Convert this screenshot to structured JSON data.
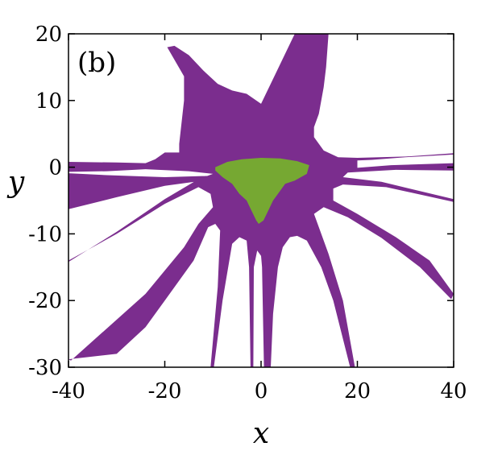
{
  "chart_data": {
    "type": "area",
    "title": "",
    "panel_label": "(b)",
    "xlabel": "x",
    "ylabel": "y",
    "xlim": [
      -40,
      40
    ],
    "ylim": [
      -30,
      20
    ],
    "x_ticks": [
      -40,
      -20,
      0,
      20,
      40
    ],
    "x_tick_labels": [
      "-40",
      "-20",
      "0",
      "20",
      "40"
    ],
    "y_ticks": [
      20,
      10,
      0,
      -10,
      -20,
      -30
    ],
    "y_tick_labels": [
      "20",
      "10",
      "0",
      "-10",
      "-20",
      "-30"
    ],
    "grid": false,
    "legend": "none",
    "colors": {
      "outer_region": "#7b2d8e",
      "inner_region": "#76a832",
      "axes": "#000000",
      "background": "#ffffff"
    },
    "regions": [
      {
        "fill": "outer_region",
        "polygon": [
          [
            -40,
            0.8
          ],
          [
            -30,
            0.7
          ],
          [
            -24,
            0.6
          ],
          [
            -22,
            1.2
          ],
          [
            -20,
            2.2
          ],
          [
            -17,
            2.2
          ],
          [
            -17,
            3.5
          ],
          [
            -16,
            10
          ],
          [
            -16,
            14
          ],
          [
            -15.5,
            13
          ],
          [
            -19.5,
            18
          ],
          [
            -18,
            18.2
          ],
          [
            -15,
            16.8
          ],
          [
            -12,
            14.5
          ],
          [
            -9,
            12.5
          ],
          [
            -6,
            11.5
          ],
          [
            -3,
            11
          ],
          [
            0,
            9.5
          ],
          [
            3,
            14
          ],
          [
            7,
            20
          ],
          [
            14,
            20
          ],
          [
            13.5,
            15
          ],
          [
            13,
            12
          ],
          [
            12,
            8
          ],
          [
            11,
            6
          ],
          [
            11,
            4.5
          ],
          [
            13,
            2.5
          ],
          [
            16,
            1.5
          ],
          [
            20,
            1.4
          ],
          [
            30,
            1.6
          ],
          [
            40,
            2.1
          ],
          [
            40,
            1.9
          ],
          [
            30,
            1.5
          ],
          [
            23,
            1.1
          ],
          [
            20,
            1.0
          ],
          [
            20,
            -0.1
          ],
          [
            27,
            0.3
          ],
          [
            40,
            0.6
          ],
          [
            40,
            -0.5
          ],
          [
            28,
            -0.4
          ],
          [
            18,
            -0.8
          ],
          [
            17,
            -1.5
          ],
          [
            25,
            -2.2
          ],
          [
            40,
            -4.8
          ],
          [
            40,
            -5.2
          ],
          [
            26,
            -3.0
          ],
          [
            17,
            -2.6
          ],
          [
            15,
            -3.2
          ],
          [
            15,
            -5
          ],
          [
            20,
            -7
          ],
          [
            28,
            -10.5
          ],
          [
            35,
            -14
          ],
          [
            40,
            -19
          ],
          [
            39.5,
            -19.8
          ],
          [
            33,
            -15
          ],
          [
            25,
            -10.6
          ],
          [
            18,
            -7.5
          ],
          [
            13,
            -6
          ],
          [
            11,
            -7
          ],
          [
            12,
            -9
          ],
          [
            14,
            -13
          ],
          [
            17,
            -20
          ],
          [
            19.5,
            -30
          ],
          [
            18.5,
            -30
          ],
          [
            15,
            -20
          ],
          [
            12.5,
            -15
          ],
          [
            9.5,
            -11
          ],
          [
            7.5,
            -10.3
          ],
          [
            6,
            -10.5
          ],
          [
            4.5,
            -12
          ],
          [
            3.5,
            -15
          ],
          [
            2.5,
            -22
          ],
          [
            2,
            -30
          ],
          [
            0.6,
            -30
          ],
          [
            0.2,
            -15
          ],
          [
            0,
            -13.3
          ],
          [
            -0.8,
            -12.5
          ],
          [
            -1.5,
            -15
          ],
          [
            -1.6,
            -30
          ],
          [
            -2.2,
            -30
          ],
          [
            -2.5,
            -15
          ],
          [
            -3,
            -11
          ],
          [
            -4.5,
            -10.5
          ],
          [
            -6,
            -11.5
          ],
          [
            -8,
            -20
          ],
          [
            -9.8,
            -30
          ],
          [
            -10.5,
            -30
          ],
          [
            -9,
            -18
          ],
          [
            -8.5,
            -9.5
          ],
          [
            -9.5,
            -8.5
          ],
          [
            -11,
            -9
          ],
          [
            -14,
            -14
          ],
          [
            -20,
            -20
          ],
          [
            -24,
            -24
          ],
          [
            -30,
            -28
          ],
          [
            -40,
            -28.8
          ],
          [
            -39.5,
            -29
          ],
          [
            -24,
            -19
          ],
          [
            -16,
            -12
          ],
          [
            -13,
            -8.5
          ],
          [
            -10,
            -6
          ],
          [
            -10.5,
            -4
          ],
          [
            -13,
            -3
          ],
          [
            -20,
            -5.5
          ],
          [
            -30,
            -10
          ],
          [
            -40,
            -14
          ],
          [
            -40,
            -14.2
          ],
          [
            -30,
            -9.7
          ],
          [
            -20,
            -4.8
          ],
          [
            -13,
            -1.8
          ],
          [
            -10,
            -1.0
          ],
          [
            -15,
            -0.6
          ],
          [
            -24,
            -0.3
          ],
          [
            -32,
            -0.6
          ],
          [
            -40,
            -0.7
          ],
          [
            -40,
            -0.9
          ],
          [
            -32,
            -1.2
          ],
          [
            -20,
            -1.5
          ],
          [
            -11,
            -1.3
          ],
          [
            -12,
            -2.0
          ],
          [
            -20,
            -2.8
          ],
          [
            -30,
            -4.5
          ],
          [
            -40,
            -6.3
          ],
          [
            -40,
            0.8
          ]
        ]
      },
      {
        "fill": "inner_region",
        "polygon": [
          [
            -9.5,
            0.0
          ],
          [
            -7,
            0.8
          ],
          [
            -4,
            1.2
          ],
          [
            0,
            1.4
          ],
          [
            4,
            1.3
          ],
          [
            7.5,
            0.9
          ],
          [
            10,
            0.3
          ],
          [
            9.5,
            -1
          ],
          [
            7,
            -2
          ],
          [
            5,
            -2.5
          ],
          [
            4,
            -3.5
          ],
          [
            2.5,
            -5
          ],
          [
            1.5,
            -6.5
          ],
          [
            0.5,
            -8
          ],
          [
            -0.5,
            -8.5
          ],
          [
            -1,
            -8
          ],
          [
            -2,
            -6.5
          ],
          [
            -3,
            -5
          ],
          [
            -4.5,
            -4
          ],
          [
            -6,
            -2.5
          ],
          [
            -8,
            -1.5
          ],
          [
            -9.5,
            -0.5
          ]
        ]
      }
    ]
  }
}
